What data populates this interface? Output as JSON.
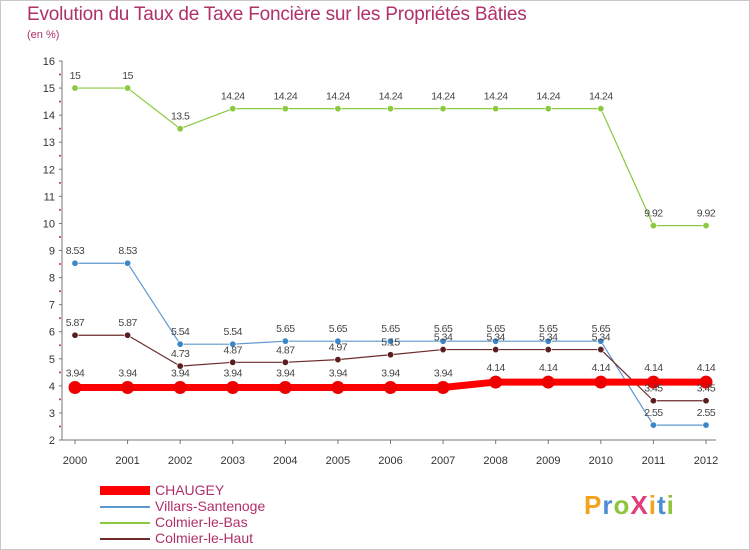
{
  "chart_data": {
    "type": "line",
    "title": "Evolution du Taux de Taxe Foncière sur les Propriétés Bâties",
    "subtitle": "(en %)",
    "x": [
      "2000",
      "2001",
      "2002",
      "2003",
      "2004",
      "2005",
      "2006",
      "2007",
      "2008",
      "2009",
      "2010",
      "2011",
      "2012"
    ],
    "ylim": [
      2,
      16
    ],
    "yticks": [
      2,
      3,
      4,
      5,
      6,
      7,
      8,
      9,
      10,
      11,
      12,
      13,
      14,
      15,
      16
    ],
    "grid": false,
    "legend_position": "bottom-left",
    "series": [
      {
        "name": "Colmier-le-Bas",
        "color": "#8ac940",
        "marker": "#8ac940",
        "values": [
          15,
          15,
          13.5,
          14.24,
          14.24,
          14.24,
          14.24,
          14.24,
          14.24,
          14.24,
          14.24,
          9.92,
          9.92
        ],
        "labels": [
          "15",
          "15",
          "13.5",
          "14.24",
          "14.24",
          "14.24",
          "14.24",
          "14.24",
          "14.24",
          "14.24",
          "14.24",
          "9.92",
          "9.92"
        ]
      },
      {
        "name": "Villars-Santenoge",
        "color": "#5d98cf",
        "marker": "#3d86c8",
        "values": [
          8.53,
          8.53,
          5.54,
          5.54,
          5.65,
          5.65,
          5.65,
          5.65,
          5.65,
          5.65,
          5.65,
          2.55,
          2.55
        ],
        "labels": [
          "8.53",
          "8.53",
          "5.54",
          "5.54",
          "5.65",
          "5.65",
          "5.65",
          "5.65",
          "5.65",
          "5.65",
          "5.65",
          "2.55",
          "2.55"
        ]
      },
      {
        "name": "Colmier-le-Haut",
        "color": "#6e2b2b",
        "marker": "#5a1e1e",
        "values": [
          5.87,
          5.87,
          4.73,
          4.87,
          4.87,
          4.97,
          5.15,
          5.34,
          5.34,
          5.34,
          5.34,
          3.45,
          3.45
        ],
        "labels": [
          "5.87",
          "5.87",
          "4.73",
          "4.87",
          "4.87",
          "4.97",
          "5.15",
          "5.34",
          "5.34",
          "5.34",
          "5.34",
          "3.45",
          "3.45"
        ]
      },
      {
        "name": "CHAUGEY",
        "color": "#ff0000",
        "marker": "#ee0000",
        "thick": true,
        "values": [
          3.94,
          3.94,
          3.94,
          3.94,
          3.94,
          3.94,
          3.94,
          3.94,
          4.14,
          4.14,
          4.14,
          4.14,
          4.14
        ],
        "labels": [
          "3.94",
          "3.94",
          "3.94",
          "3.94",
          "3.94",
          "3.94",
          "3.94",
          "3.94",
          "4.14",
          "4.14",
          "4.14",
          "4.14",
          "4.14"
        ]
      }
    ],
    "legend": [
      "CHAUGEY",
      "Villars-Santenoge",
      "Colmier-le-Bas",
      "Colmier-le-Haut"
    ]
  },
  "logo": {
    "text": "ProXiti",
    "letters": [
      "P",
      "r",
      "o",
      "X",
      "i",
      "t",
      "i"
    ],
    "colors": [
      "#f2a41c",
      "#4a8fd4",
      "#8fc43c",
      "#e23c7a",
      "#f2a41c",
      "#4a8fd4",
      "#8fc43c"
    ]
  }
}
